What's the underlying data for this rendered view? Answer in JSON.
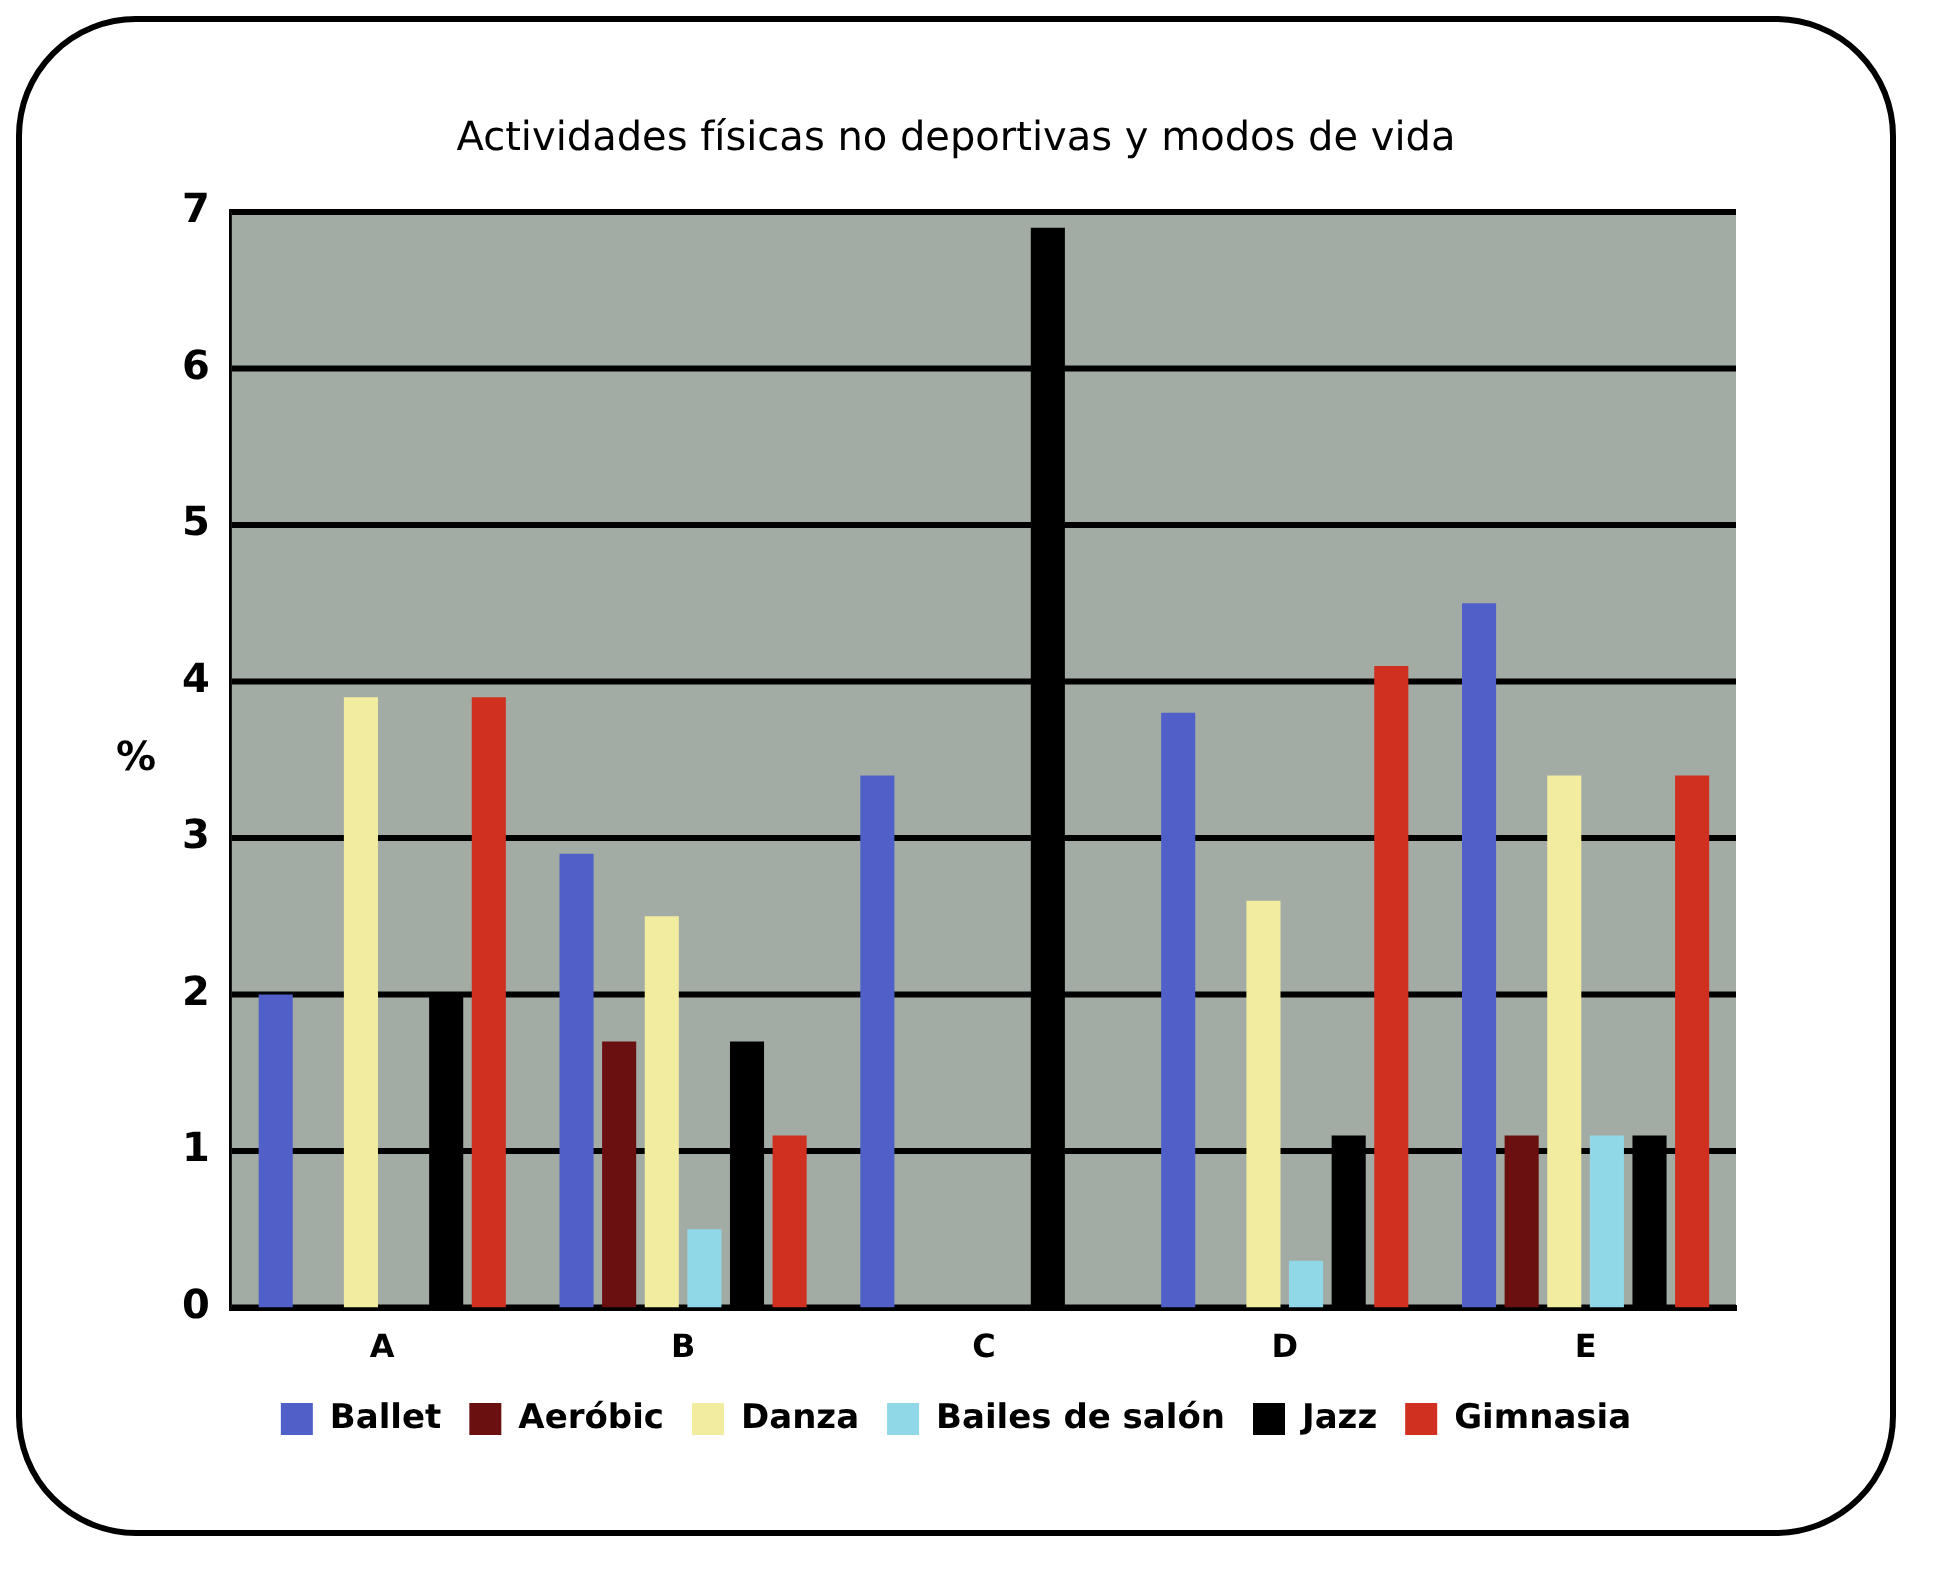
{
  "chart_data": {
    "type": "bar",
    "title": "Actividades físicas no deportivas y modos de vida",
    "ylabel": "%",
    "categories": [
      "A",
      "B",
      "C",
      "D",
      "E"
    ],
    "series": [
      {
        "name": "Ballet",
        "color": "#5060c8",
        "values": [
          2,
          2.9,
          3.4,
          3.8,
          4.5
        ]
      },
      {
        "name": "Aeróbic",
        "color": "#6a1010",
        "values": [
          0,
          1.7,
          0,
          0,
          1.1
        ]
      },
      {
        "name": "Danza",
        "color": "#f2eca0",
        "values": [
          3.9,
          2.5,
          0,
          2.6,
          3.4
        ]
      },
      {
        "name": "Bailes de salón",
        "color": "#90d8e8",
        "values": [
          0,
          0.5,
          0,
          0.3,
          1.1
        ]
      },
      {
        "name": "Jazz",
        "color": "#000000",
        "values": [
          2,
          1.7,
          6.9,
          1.1,
          1.1
        ]
      },
      {
        "name": "Gimnasia",
        "color": "#d03020",
        "values": [
          3.9,
          1.1,
          0,
          4.1,
          3.4
        ]
      }
    ],
    "ylim": [
      0,
      7
    ],
    "yticks": [
      0,
      1,
      2,
      3,
      4,
      5,
      6,
      7
    ],
    "grid": "y",
    "legend": "bottom"
  }
}
